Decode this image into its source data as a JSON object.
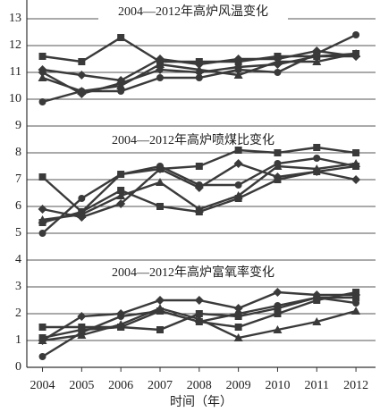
{
  "chart_data": {
    "type": "line",
    "annotations": [
      "2004—2012年高炉风温变化",
      "2004—2012年高炉喷煤比变化",
      "2004—2012年高炉富氧率变化"
    ],
    "xlabel": "时间（年）",
    "x": [
      2004,
      2005,
      2006,
      2007,
      2008,
      2009,
      2010,
      2011,
      2012
    ],
    "xlim": [
      2003.6,
      2012.5
    ],
    "xticks": [
      2004,
      2005,
      2006,
      2007,
      2008,
      2009,
      2010,
      2011,
      2012
    ],
    "ylim": [
      0,
      13.7
    ],
    "yticks": [
      0,
      1,
      2,
      3,
      4,
      5,
      6,
      7,
      8,
      9,
      10,
      11,
      12,
      13
    ],
    "grid": true,
    "color": "#3a3a3a",
    "series": [
      {
        "marker": "square",
        "values": [
          11.6,
          11.4,
          12.3,
          11.4,
          11.4,
          11.4,
          11.6,
          11.6,
          11.7
        ]
      },
      {
        "marker": "diamond",
        "values": [
          11.1,
          10.9,
          10.7,
          11.5,
          11.3,
          11.5,
          11.5,
          11.8,
          11.6
        ]
      },
      {
        "marker": "triangle",
        "values": [
          10.8,
          10.3,
          10.5,
          11.3,
          11.1,
          10.9,
          11.4,
          11.4,
          11.7
        ]
      },
      {
        "marker": "circle",
        "values": [
          9.9,
          10.3,
          10.3,
          10.8,
          10.8,
          11.1,
          11.0,
          11.7,
          12.4
        ]
      },
      {
        "marker": "diamond",
        "values": [
          11.0,
          10.2,
          10.6,
          11.1,
          11.0,
          11.2,
          11.3,
          11.6,
          11.6
        ]
      },
      {
        "marker": "square",
        "values": [
          7.1,
          5.8,
          7.2,
          7.4,
          7.5,
          8.1,
          8.0,
          8.2,
          8.0
        ]
      },
      {
        "marker": "diamond",
        "values": [
          5.9,
          5.6,
          6.1,
          7.4,
          6.7,
          7.6,
          7.1,
          7.3,
          7.0
        ]
      },
      {
        "marker": "triangle",
        "values": [
          5.5,
          5.7,
          6.4,
          6.9,
          5.9,
          6.4,
          7.5,
          7.4,
          7.6
        ]
      },
      {
        "marker": "circle",
        "values": [
          5.0,
          6.3,
          7.2,
          7.5,
          6.8,
          6.8,
          7.6,
          7.8,
          7.5
        ]
      },
      {
        "marker": "square",
        "values": [
          5.4,
          5.8,
          6.6,
          6.0,
          5.8,
          6.3,
          7.0,
          7.3,
          7.5
        ]
      },
      {
        "marker": "square",
        "values": [
          1.5,
          1.5,
          1.5,
          1.4,
          2.0,
          1.9,
          2.2,
          2.6,
          2.6
        ]
      },
      {
        "marker": "diamond",
        "values": [
          1.0,
          1.9,
          2.0,
          2.5,
          2.5,
          2.2,
          2.8,
          2.7,
          2.7
        ]
      },
      {
        "marker": "triangle",
        "values": [
          1.0,
          1.2,
          1.6,
          2.2,
          1.8,
          1.1,
          1.4,
          1.7,
          2.1
        ]
      },
      {
        "marker": "circle",
        "values": [
          0.4,
          1.3,
          1.9,
          2.1,
          1.7,
          2.0,
          2.3,
          2.6,
          2.4
        ]
      },
      {
        "marker": "square",
        "values": [
          1.1,
          1.4,
          1.5,
          2.1,
          1.7,
          1.5,
          2.0,
          2.5,
          2.8
        ]
      }
    ]
  }
}
